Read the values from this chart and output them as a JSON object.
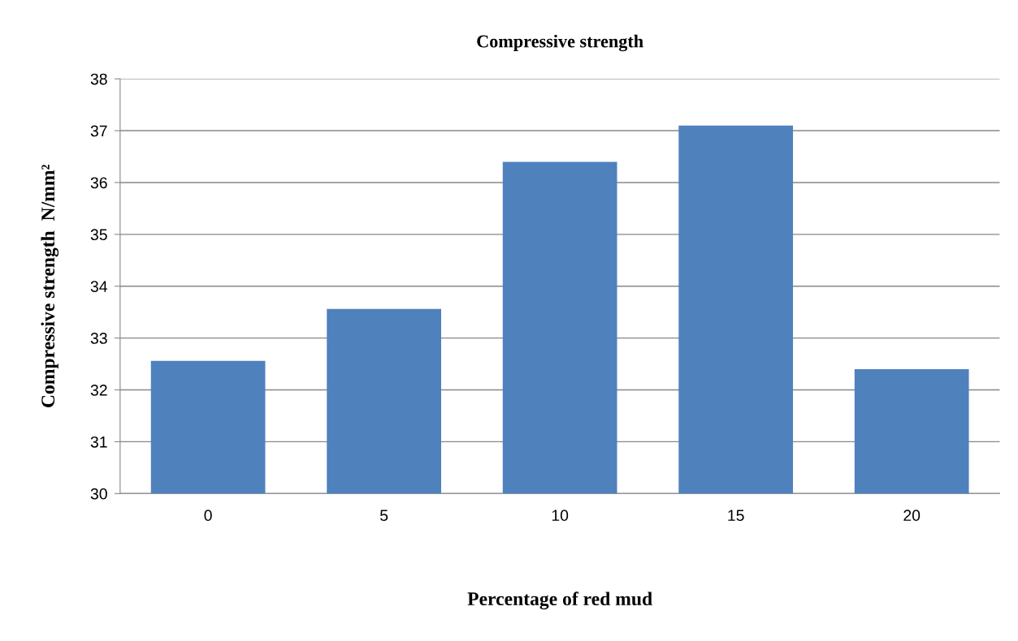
{
  "chart_data": {
    "type": "bar",
    "title": "Compressive strength",
    "xlabel": "Percentage of red mud",
    "ylabel": "Compressive strength  N/mm²",
    "categories": [
      "0",
      "5",
      "10",
      "15",
      "20"
    ],
    "values": [
      32.56,
      33.56,
      36.4,
      37.1,
      32.4
    ],
    "color": "#4f81bd",
    "ylim": [
      30,
      38
    ],
    "yticks": [
      30,
      31,
      32,
      33,
      34,
      35,
      36,
      37,
      38
    ],
    "grid": "y",
    "legend": false
  }
}
